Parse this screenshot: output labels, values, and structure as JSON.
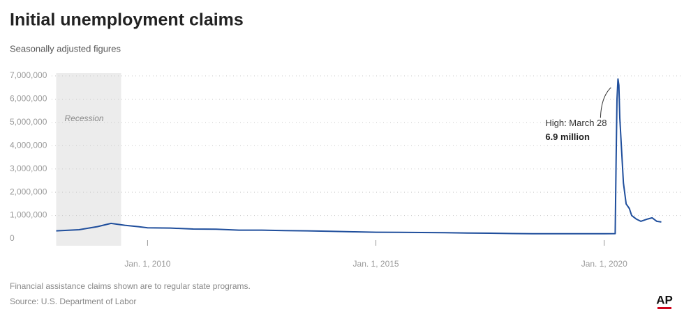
{
  "chart_data": {
    "type": "line",
    "title": "Initial unemployment claims",
    "subtitle": "Seasonally adjusted figures",
    "note": "Financial assistance claims shown are to regular state programs.",
    "source": "Source: U.S. Department of Labor",
    "logo": "AP",
    "color": "#1f4e9c",
    "grid": true,
    "xlim": [
      2007.9,
      2021.67
    ],
    "ylim": [
      0,
      7000000
    ],
    "xticks": [
      {
        "value": 2010,
        "label": "Jan. 1, 2010"
      },
      {
        "value": 2015,
        "label": "Jan. 1, 2015"
      },
      {
        "value": 2020,
        "label": "Jan. 1, 2020"
      }
    ],
    "yticks": [
      0,
      {
        "value": 1000000,
        "label": "1,000,000"
      },
      {
        "value": 2000000,
        "label": "2,000,000"
      },
      {
        "value": 3000000,
        "label": "3,000,000"
      },
      {
        "value": 4000000,
        "label": "4,000,000"
      },
      {
        "value": 5000000,
        "label": "5,000,000"
      },
      {
        "value": 6000000,
        "label": "6,000,000"
      },
      {
        "value": 7000000,
        "label": "7,000,000"
      }
    ],
    "recession": {
      "label": "Recession",
      "range": [
        2008.0,
        2009.42
      ]
    },
    "annotation": {
      "x": 2020.3,
      "lines": [
        "High: March 28",
        "6.9 million"
      ]
    },
    "x": [
      2008.0,
      2008.5,
      2008.9,
      2009.2,
      2009.5,
      2009.8,
      2010.0,
      2010.5,
      2011.0,
      2011.5,
      2012.0,
      2012.5,
      2013.0,
      2013.5,
      2014.0,
      2014.5,
      2015.0,
      2015.5,
      2016.0,
      2016.5,
      2017.0,
      2017.5,
      2018.0,
      2018.5,
      2019.0,
      2019.5,
      2020.0,
      2020.24,
      2020.26,
      2020.28,
      2020.3,
      2020.32,
      2020.34,
      2020.38,
      2020.42,
      2020.48,
      2020.55,
      2020.6,
      2020.7,
      2020.8,
      2020.95,
      2021.05,
      2021.15,
      2021.25
    ],
    "values": [
      340000,
      390000,
      520000,
      660000,
      580000,
      520000,
      470000,
      460000,
      420000,
      410000,
      370000,
      370000,
      350000,
      340000,
      320000,
      300000,
      280000,
      275000,
      270000,
      260000,
      245000,
      240000,
      225000,
      215000,
      215000,
      215000,
      215000,
      220000,
      3300000,
      6000000,
      6867000,
      6600000,
      5200000,
      3800000,
      2400000,
      1500000,
      1300000,
      1000000,
      850000,
      750000,
      850000,
      900000,
      750000,
      720000
    ]
  }
}
